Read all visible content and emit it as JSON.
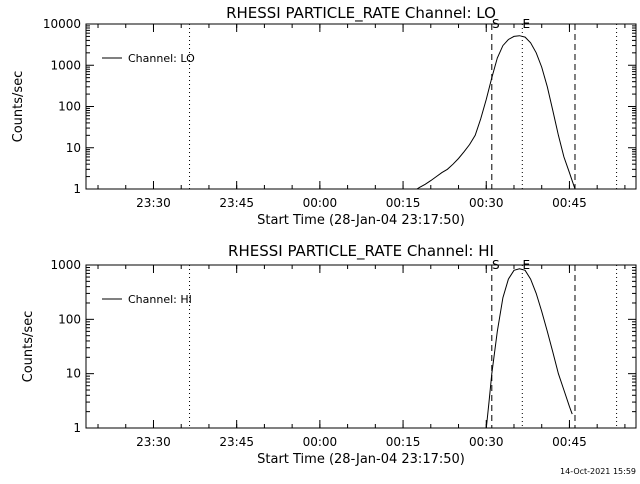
{
  "chart_data": [
    {
      "type": "line",
      "title": "RHESSI PARTICLE_RATE Channel: LO",
      "xlabel": "Start Time (28-Jan-04 23:17:50)",
      "ylabel": "Counts/sec",
      "yscale": "log",
      "ylim": [
        1,
        10000
      ],
      "xlim": [
        "23:17:50",
        "00:57:00"
      ],
      "x_ticks": [
        "23:30",
        "23:45",
        "00:00",
        "00:15",
        "00:30",
        "00:45"
      ],
      "y_ticks": [
        "1",
        "10",
        "100",
        "1000",
        "10000"
      ],
      "legend": {
        "position": "top-left",
        "label": "Channel: LO"
      },
      "markers": [
        {
          "label": "S",
          "time": "00:31:00",
          "style": "dashed"
        },
        {
          "label": "E",
          "time": "00:36:30",
          "style": "dotted"
        }
      ],
      "vlines": [
        {
          "time": "23:36:30",
          "style": "dotted"
        },
        {
          "time": "00:46:00",
          "style": "dashed"
        },
        {
          "time": "00:53:30",
          "style": "dotted"
        }
      ],
      "series": [
        {
          "x": [
            "00:17:30",
            "00:18:00",
            "00:19:00",
            "00:20:00",
            "00:21:00",
            "00:22:00",
            "00:23:00",
            "00:24:00",
            "00:25:00",
            "00:26:00",
            "00:27:00",
            "00:28:00",
            "00:29:00",
            "00:30:00",
            "00:31:00",
            "00:32:00",
            "00:33:00",
            "00:34:00",
            "00:35:00",
            "00:36:00",
            "00:37:00",
            "00:38:00",
            "00:39:00",
            "00:40:00",
            "00:41:00",
            "00:42:00",
            "00:43:00",
            "00:44:00",
            "00:45:00",
            "00:46:00"
          ],
          "values": [
            1,
            1.1,
            1.3,
            1.6,
            2,
            2.5,
            3,
            4,
            5.5,
            8,
            12,
            20,
            50,
            150,
            500,
            1500,
            3000,
            4200,
            5000,
            5200,
            4800,
            3500,
            2000,
            900,
            300,
            80,
            20,
            6,
            2.5,
            1
          ]
        }
      ]
    },
    {
      "type": "line",
      "title": "RHESSI PARTICLE_RATE Channel: HI",
      "xlabel": "Start Time (28-Jan-04 23:17:50)",
      "ylabel": "Counts/sec",
      "yscale": "log",
      "ylim": [
        1,
        1000
      ],
      "xlim": [
        "23:17:50",
        "00:57:00"
      ],
      "x_ticks": [
        "23:30",
        "23:45",
        "00:00",
        "00:15",
        "00:30",
        "00:45"
      ],
      "y_ticks": [
        "1",
        "10",
        "100",
        "1000"
      ],
      "legend": {
        "position": "top-left",
        "label": "Channel: HI"
      },
      "markers": [
        {
          "label": "S",
          "time": "00:31:00",
          "style": "dashed"
        },
        {
          "label": "E",
          "time": "00:36:30",
          "style": "dotted"
        }
      ],
      "vlines": [
        {
          "time": "23:36:30",
          "style": "dotted"
        },
        {
          "time": "00:46:00",
          "style": "dashed"
        },
        {
          "time": "00:53:30",
          "style": "dotted"
        }
      ],
      "series": [
        {
          "x": [
            "00:30:00",
            "00:30:30",
            "00:31:00",
            "00:32:00",
            "00:33:00",
            "00:34:00",
            "00:35:00",
            "00:36:00",
            "00:37:00",
            "00:38:00",
            "00:39:00",
            "00:40:00",
            "00:41:00",
            "00:42:00",
            "00:43:00",
            "00:44:00",
            "00:45:00",
            "00:45:30"
          ],
          "values": [
            1,
            3,
            10,
            60,
            250,
            550,
            800,
            850,
            800,
            550,
            300,
            140,
            60,
            25,
            10,
            5,
            2.5,
            1.8
          ]
        }
      ]
    }
  ],
  "timestamp": "14-Oct-2021 15:59"
}
